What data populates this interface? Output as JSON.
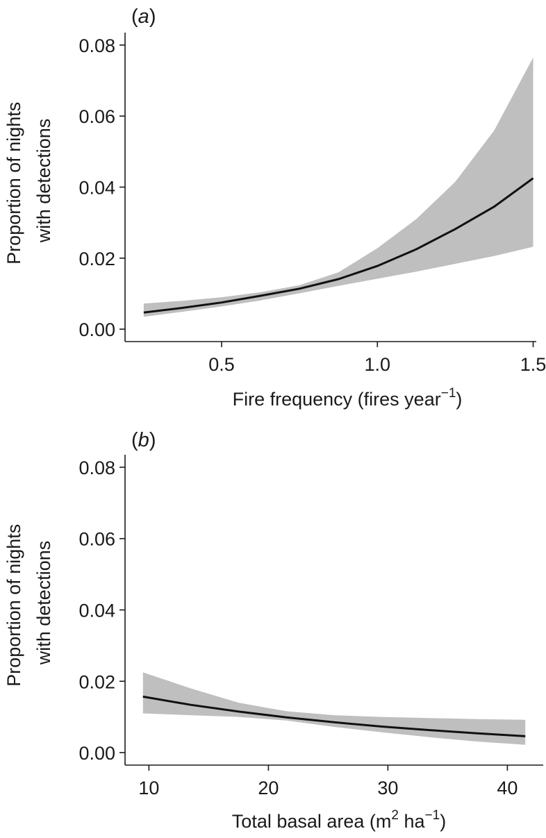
{
  "chart_data": [
    {
      "type": "line",
      "panel_label": "(a)",
      "panel_letter": "a",
      "xlabel": "Fire frequency (fires year−1)",
      "xlabel_main": "Fire frequency (fires year",
      "xlabel_sup": "−1",
      "xlabel_tail": ")",
      "ylabel_lines": [
        "Proportion of nights",
        "with detections"
      ],
      "xlim": [
        0.19,
        1.51
      ],
      "ylim": [
        -0.0035,
        0.0835
      ],
      "xticks": [
        0.5,
        1.0,
        1.5
      ],
      "xtick_labels": [
        "0.5",
        "1.0",
        "1.5"
      ],
      "yticks": [
        0.0,
        0.02,
        0.04,
        0.06,
        0.08
      ],
      "ytick_labels": [
        "0.00",
        "0.02",
        "0.04",
        "0.06",
        "0.08"
      ],
      "grid": false,
      "x": [
        0.25,
        0.375,
        0.5,
        0.625,
        0.75,
        0.875,
        1.0,
        1.125,
        1.25,
        1.375,
        1.5
      ],
      "fit": [
        0.0047,
        0.006,
        0.0075,
        0.0094,
        0.0114,
        0.0141,
        0.0178,
        0.0225,
        0.0282,
        0.0345,
        0.0425
      ],
      "lower": [
        0.0035,
        0.0049,
        0.0064,
        0.0081,
        0.0101,
        0.0122,
        0.0142,
        0.0162,
        0.0184,
        0.0206,
        0.0232
      ],
      "upper": [
        0.0072,
        0.008,
        0.009,
        0.0104,
        0.0124,
        0.016,
        0.0228,
        0.031,
        0.0415,
        0.056,
        0.0765
      ]
    },
    {
      "type": "line",
      "panel_label": "(b)",
      "panel_letter": "b",
      "xlabel": "Total basal area (m2 ha−1)",
      "xlabel_main": "Total basal area (m",
      "xlabel_sup1": "2",
      "xlabel_mid": " ha",
      "xlabel_sup2": "−1",
      "xlabel_tail": ")",
      "ylabel_lines": [
        "Proportion of nights",
        "with detections"
      ],
      "xlim": [
        8,
        43
      ],
      "ylim": [
        -0.0035,
        0.0835
      ],
      "xticks": [
        10,
        20,
        30,
        40
      ],
      "xtick_labels": [
        "10",
        "20",
        "30",
        "40"
      ],
      "yticks": [
        0.0,
        0.02,
        0.04,
        0.06,
        0.08
      ],
      "ytick_labels": [
        "0.00",
        "0.02",
        "0.04",
        "0.06",
        "0.08"
      ],
      "grid": false,
      "x": [
        9.5,
        13.5,
        17.5,
        21.5,
        25.5,
        29.5,
        33.5,
        37.5,
        41.5
      ],
      "fit": [
        0.0157,
        0.0134,
        0.0115,
        0.0099,
        0.0085,
        0.0073,
        0.0063,
        0.0054,
        0.0046
      ],
      "lower": [
        0.011,
        0.0105,
        0.01,
        0.009,
        0.0072,
        0.0057,
        0.0043,
        0.0031,
        0.0022
      ],
      "upper": [
        0.0225,
        0.018,
        0.014,
        0.0116,
        0.0105,
        0.01,
        0.0097,
        0.0094,
        0.0092
      ]
    }
  ]
}
